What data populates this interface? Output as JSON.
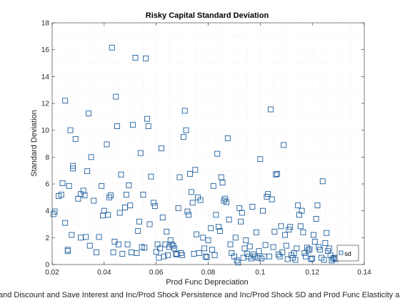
{
  "chart_data": {
    "type": "scatter",
    "title": "Risky Capital Standard Deviation",
    "xlabel": "Prod Func Depreciation",
    "ylabel": "Standard Deviation",
    "bottom_caption": "and Discount and Save Interest and Inc/Prod Shock Persistence and Inc/Prod Shock SD and Prod Func Elasticity a",
    "xlim": [
      0.02,
      0.14
    ],
    "ylim": [
      0,
      18
    ],
    "xticks": [
      "0.02",
      "0.04",
      "0.06",
      "0.08",
      "0.1",
      "0.12",
      "0.14"
    ],
    "yticks": [
      "0",
      "2",
      "4",
      "6",
      "8",
      "10",
      "12",
      "14",
      "16",
      "18"
    ],
    "grid": "minor dotted",
    "marker": "square",
    "marker_color": "#1f5f9e",
    "legend_position": "bottom-right",
    "series": [
      {
        "name": "sd",
        "points": [
          [
            0.0205,
            3.75
          ],
          [
            0.021,
            3.95
          ],
          [
            0.0225,
            5.1
          ],
          [
            0.0235,
            5.2
          ],
          [
            0.024,
            6.05
          ],
          [
            0.025,
            3.1
          ],
          [
            0.025,
            12.2
          ],
          [
            0.026,
            1.0
          ],
          [
            0.026,
            1.1
          ],
          [
            0.0265,
            5.85
          ],
          [
            0.027,
            10.0
          ],
          [
            0.0275,
            2.2
          ],
          [
            0.028,
            7.15
          ],
          [
            0.028,
            7.35
          ],
          [
            0.029,
            9.35
          ],
          [
            0.03,
            4.9
          ],
          [
            0.031,
            2.0
          ],
          [
            0.031,
            5.25
          ],
          [
            0.032,
            5.5
          ],
          [
            0.0325,
            5.15
          ],
          [
            0.033,
            2.05
          ],
          [
            0.0335,
            6.95
          ],
          [
            0.034,
            11.25
          ],
          [
            0.0345,
            1.4
          ],
          [
            0.035,
            8.0
          ],
          [
            0.036,
            4.75
          ],
          [
            0.037,
            0.9
          ],
          [
            0.038,
            2.05
          ],
          [
            0.039,
            5.85
          ],
          [
            0.0395,
            3.65
          ],
          [
            0.04,
            4.0
          ],
          [
            0.041,
            8.95
          ],
          [
            0.0415,
            3.7
          ],
          [
            0.042,
            5.0
          ],
          [
            0.0425,
            5.15
          ],
          [
            0.043,
            16.15
          ],
          [
            0.0435,
            0.9
          ],
          [
            0.044,
            1.7
          ],
          [
            0.0445,
            12.5
          ],
          [
            0.045,
            10.3
          ],
          [
            0.0455,
            1.5
          ],
          [
            0.046,
            3.85
          ],
          [
            0.0465,
            6.7
          ],
          [
            0.047,
            0.8
          ],
          [
            0.048,
            4.25
          ],
          [
            0.0485,
            5.2
          ],
          [
            0.049,
            1.5
          ],
          [
            0.0495,
            5.9
          ],
          [
            0.05,
            4.4
          ],
          [
            0.0505,
            0.9
          ],
          [
            0.051,
            10.4
          ],
          [
            0.052,
            15.4
          ],
          [
            0.0525,
            0.85
          ],
          [
            0.053,
            2.5
          ],
          [
            0.0535,
            3.2
          ],
          [
            0.054,
            8.3
          ],
          [
            0.0545,
            1.3
          ],
          [
            0.055,
            5.2
          ],
          [
            0.0555,
            1.25
          ],
          [
            0.056,
            15.35
          ],
          [
            0.0565,
            10.85
          ],
          [
            0.057,
            10.3
          ],
          [
            0.0575,
            3.0
          ],
          [
            0.058,
            6.55
          ],
          [
            0.059,
            4.6
          ],
          [
            0.0595,
            4.35
          ],
          [
            0.06,
            0.95
          ],
          [
            0.0605,
            1.5
          ],
          [
            0.061,
            0.5
          ],
          [
            0.0615,
            1.2
          ],
          [
            0.062,
            8.65
          ],
          [
            0.0625,
            3.5
          ],
          [
            0.063,
            0.6
          ],
          [
            0.0635,
            1.5
          ],
          [
            0.064,
            2.45
          ],
          [
            0.0645,
            0.7
          ],
          [
            0.065,
            1.3
          ],
          [
            0.0655,
            1.8
          ],
          [
            0.066,
            1.5
          ],
          [
            0.0665,
            1.4
          ],
          [
            0.067,
            1.2
          ],
          [
            0.0675,
            0.8
          ],
          [
            0.068,
            0.75
          ],
          [
            0.0685,
            4.2
          ],
          [
            0.069,
            6.5
          ],
          [
            0.0695,
            0.85
          ],
          [
            0.07,
            0.7
          ],
          [
            0.0705,
            9.5
          ],
          [
            0.071,
            11.45
          ],
          [
            0.0715,
            10.0
          ],
          [
            0.072,
            3.95
          ],
          [
            0.0725,
            3.7
          ],
          [
            0.073,
            6.75
          ],
          [
            0.0735,
            5.4
          ],
          [
            0.074,
            4.6
          ],
          [
            0.0745,
            0.8
          ],
          [
            0.075,
            7.05
          ],
          [
            0.0755,
            2.25
          ],
          [
            0.076,
            5.0
          ],
          [
            0.0765,
            0.85
          ],
          [
            0.077,
            4.8
          ],
          [
            0.078,
            2.0
          ],
          [
            0.0785,
            1.2
          ],
          [
            0.079,
            0.6
          ],
          [
            0.0795,
            0.55
          ],
          [
            0.08,
            1.8
          ],
          [
            0.081,
            2.7
          ],
          [
            0.0815,
            1.1
          ],
          [
            0.082,
            5.85
          ],
          [
            0.0825,
            0.7
          ],
          [
            0.083,
            3.7
          ],
          [
            0.0835,
            8.25
          ],
          [
            0.084,
            2.8
          ],
          [
            0.0845,
            2.5
          ],
          [
            0.085,
            6.5
          ],
          [
            0.0855,
            6.1
          ],
          [
            0.086,
            4.75
          ],
          [
            0.0865,
            4.9
          ],
          [
            0.087,
            4.65
          ],
          [
            0.0875,
            9.4
          ],
          [
            0.088,
            3.35
          ],
          [
            0.0885,
            1.5
          ],
          [
            0.089,
            0.85
          ],
          [
            0.09,
            0.6
          ],
          [
            0.0905,
            2.0
          ],
          [
            0.091,
            0.3
          ],
          [
            0.0915,
            0.15
          ],
          [
            0.092,
            4.2
          ],
          [
            0.0925,
            3.2
          ],
          [
            0.093,
            3.85
          ],
          [
            0.0935,
            0.5
          ],
          [
            0.094,
            1.2
          ],
          [
            0.0945,
            1.8
          ],
          [
            0.095,
            0.8
          ],
          [
            0.0955,
            0.6
          ],
          [
            0.096,
            1.35
          ],
          [
            0.0965,
            0.45
          ],
          [
            0.097,
            4.3
          ],
          [
            0.0975,
            0.75
          ],
          [
            0.098,
            0.6
          ],
          [
            0.0985,
            2.4
          ],
          [
            0.099,
            0.5
          ],
          [
            0.0995,
            1.0
          ],
          [
            0.1,
            7.85
          ],
          [
            0.1005,
            0.45
          ],
          [
            0.101,
            4.0
          ],
          [
            0.1015,
            0.6
          ],
          [
            0.102,
            1.45
          ],
          [
            0.1025,
            5.05
          ],
          [
            0.103,
            5.25
          ],
          [
            0.1035,
            0.6
          ],
          [
            0.104,
            11.55
          ],
          [
            0.1045,
            4.85
          ],
          [
            0.105,
            1.3
          ],
          [
            0.1055,
            2.45
          ],
          [
            0.106,
            6.7
          ],
          [
            0.1065,
            6.75
          ],
          [
            0.107,
            0.75
          ],
          [
            0.1075,
            0.6
          ],
          [
            0.108,
            2.85
          ],
          [
            0.1085,
            0.9
          ],
          [
            0.109,
            8.9
          ],
          [
            0.1095,
            2.2
          ],
          [
            0.11,
            1.4
          ],
          [
            0.1105,
            0.4
          ],
          [
            0.111,
            2.6
          ],
          [
            0.1115,
            2.8
          ],
          [
            0.112,
            0.7
          ],
          [
            0.1125,
            0.5
          ],
          [
            0.113,
            0.85
          ],
          [
            0.1135,
            0.35
          ],
          [
            0.114,
            1.2
          ],
          [
            0.1145,
            4.4
          ],
          [
            0.115,
            3.7
          ],
          [
            0.1155,
            2.85
          ],
          [
            0.116,
            4.0
          ],
          [
            0.1165,
            2.4
          ],
          [
            0.117,
            0.85
          ],
          [
            0.1175,
            0.6
          ],
          [
            0.118,
            1.25
          ],
          [
            0.1185,
            1.05
          ],
          [
            0.119,
            1.15
          ],
          [
            0.1195,
            0.4
          ],
          [
            0.12,
            0.45
          ],
          [
            0.1205,
            2.2
          ],
          [
            0.121,
            1.7
          ],
          [
            0.1215,
            3.4
          ],
          [
            0.122,
            4.4
          ],
          [
            0.1225,
            1.3
          ],
          [
            0.123,
            1.1
          ],
          [
            0.1235,
            0.5
          ],
          [
            0.124,
            6.2
          ],
          [
            0.1245,
            0.35
          ],
          [
            0.125,
            1.6
          ],
          [
            0.1255,
            2.35
          ],
          [
            0.126,
            1.0
          ],
          [
            0.1265,
            1.2
          ],
          [
            0.127,
            0.7
          ],
          [
            0.1275,
            0.3
          ],
          [
            0.128,
            0.45
          ],
          [
            0.1285,
            0.5
          ],
          [
            0.129,
            0.4
          ]
        ]
      }
    ]
  }
}
